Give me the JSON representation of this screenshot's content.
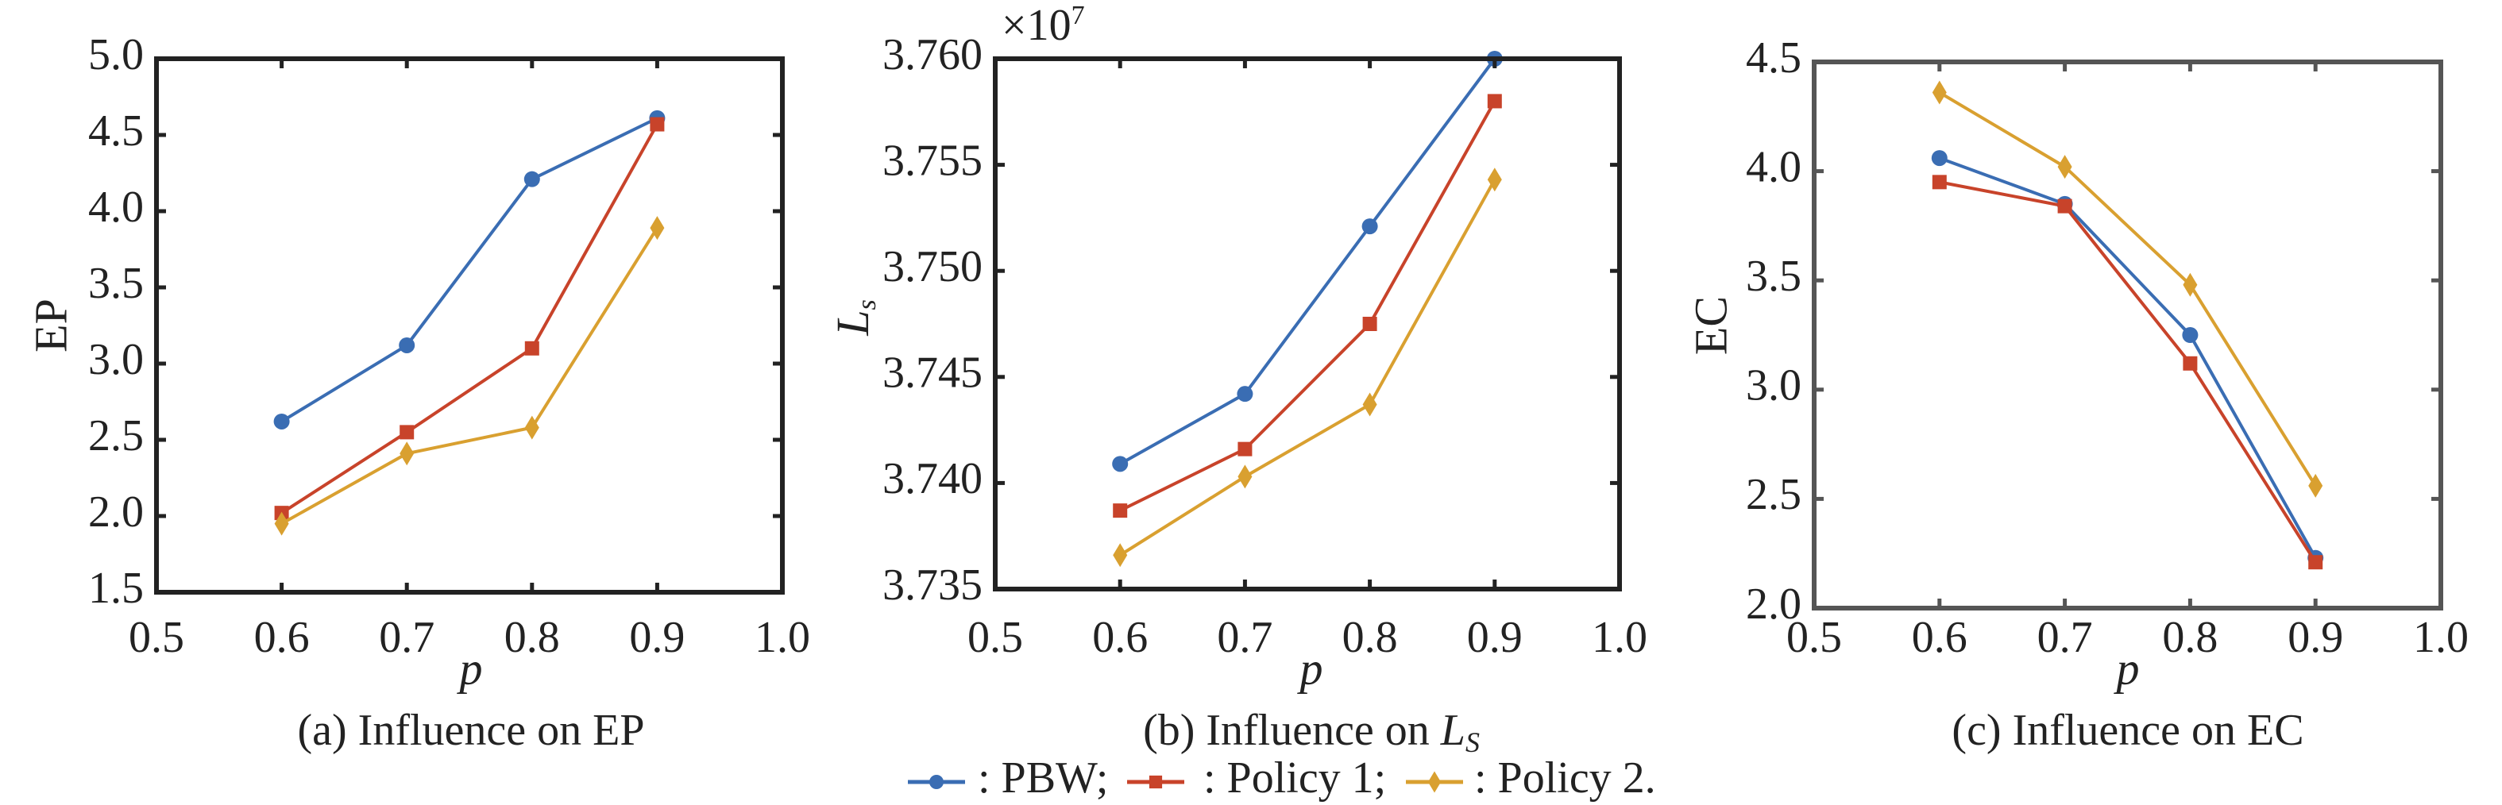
{
  "legend": [
    {
      "label": ": PBW;",
      "color": "#3a6db3",
      "marker": "circle"
    },
    {
      "label": ": Policy 1;",
      "color": "#c8432a",
      "marker": "square"
    },
    {
      "label": ": Policy 2.",
      "color": "#d9a030",
      "marker": "diamond"
    }
  ],
  "chart_data": [
    {
      "type": "line",
      "caption": "(a) Influence on EP",
      "xlabel": "p",
      "ylabel": "EP",
      "multiplier": "",
      "x": [
        0.6,
        0.7,
        0.8,
        0.9
      ],
      "xlim": [
        0.5,
        1.0
      ],
      "xticks": [
        "0.5",
        "0.6",
        "0.7",
        "0.8",
        "0.9",
        "1.0"
      ],
      "ylim": [
        1.5,
        5.0
      ],
      "yticks": [
        "1.5",
        "2.0",
        "2.5",
        "3.0",
        "3.5",
        "4.0",
        "4.5",
        "5.0"
      ],
      "grid": false,
      "series": [
        {
          "name": "PBW",
          "values": [
            2.62,
            3.12,
            4.21,
            4.61
          ]
        },
        {
          "name": "Policy 1",
          "values": [
            2.02,
            2.55,
            3.1,
            4.57
          ]
        },
        {
          "name": "Policy 2",
          "values": [
            1.95,
            2.41,
            2.58,
            3.89
          ]
        }
      ]
    },
    {
      "type": "line",
      "caption": "(b) Influence on L",
      "caption_sub": "S",
      "xlabel": "p",
      "ylabel": "L",
      "ylabel_sub": "s",
      "multiplier": "×10",
      "multiplier_exp": "7",
      "x": [
        0.6,
        0.7,
        0.8,
        0.9
      ],
      "xlim": [
        0.5,
        1.0
      ],
      "xticks": [
        "0.5",
        "0.6",
        "0.7",
        "0.8",
        "0.9",
        "1.0"
      ],
      "ylim": [
        3.735,
        3.76
      ],
      "yticks": [
        "3.735",
        "3.740",
        "3.745",
        "3.750",
        "3.755",
        "3.760"
      ],
      "grid": false,
      "series": [
        {
          "name": "PBW",
          "values": [
            3.7409,
            3.7442,
            3.7521,
            3.76
          ]
        },
        {
          "name": "Policy 1",
          "values": [
            3.7387,
            3.7416,
            3.7475,
            3.758
          ]
        },
        {
          "name": "Policy 2",
          "values": [
            3.7366,
            3.7403,
            3.7437,
            3.7543
          ]
        }
      ]
    },
    {
      "type": "line",
      "caption": "(c) Influence on EC",
      "xlabel": "p",
      "ylabel": "EC",
      "multiplier": "",
      "x": [
        0.6,
        0.7,
        0.8,
        0.9
      ],
      "xlim": [
        0.5,
        1.0
      ],
      "xticks": [
        "0.5",
        "0.6",
        "0.7",
        "0.8",
        "0.9",
        "1.0"
      ],
      "ylim": [
        2.0,
        4.5
      ],
      "yticks": [
        "2.0",
        "2.5",
        "3.0",
        "3.5",
        "4.0",
        "4.5"
      ],
      "grid": false,
      "series": [
        {
          "name": "PBW",
          "values": [
            4.06,
            3.85,
            3.25,
            2.23
          ]
        },
        {
          "name": "Policy 1",
          "values": [
            3.95,
            3.84,
            3.12,
            2.21
          ]
        },
        {
          "name": "Policy 2",
          "values": [
            4.36,
            4.02,
            3.48,
            2.56
          ]
        }
      ]
    }
  ]
}
